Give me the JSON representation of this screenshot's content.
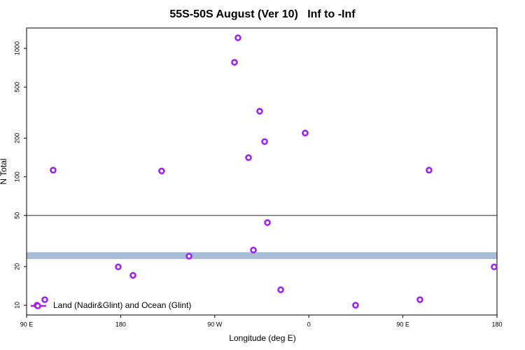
{
  "chart_data": {
    "type": "scatter",
    "title": "55S-50S August (Ver 10)   Inf to -Inf",
    "xlabel": "Longitude (deg E)",
    "ylabel": "N Total",
    "xlim": [
      90,
      540
    ],
    "xticks": [
      {
        "value": 90,
        "label": "90 E"
      },
      {
        "value": 180,
        "label": "180"
      },
      {
        "value": 270,
        "label": "90 W"
      },
      {
        "value": 360,
        "label": "0"
      },
      {
        "value": 450,
        "label": "90 E"
      },
      {
        "value": 540,
        "label": "180"
      }
    ],
    "ylim": [
      8.4,
      1440
    ],
    "ylog": true,
    "yticks": [
      10,
      20,
      50,
      100,
      200,
      500,
      1000
    ],
    "hline": 50,
    "band": [
      22.9,
      25.9
    ],
    "band_color": "#a8bcd8",
    "legend": "bottom-left",
    "series": [
      {
        "name": "Land (Nadir&Glint) and Ocean (Glint)",
        "color": "#a020f0",
        "x": [
          100,
          107.4,
          115.4,
          177.7,
          191.8,
          219.2,
          245.4,
          288.9,
          292.2,
          302.3,
          307,
          313,
          317.7,
          320.4,
          333.1,
          356.5,
          404.7,
          466.3,
          475,
          537.3
        ],
        "values": [
          10,
          11.05,
          112.7,
          19.9,
          17.1,
          111,
          24.1,
          778,
          1208,
          141,
          26.9,
          324,
          188,
          44,
          13.2,
          219,
          10,
          11.05,
          112.7,
          19.9
        ]
      }
    ]
  }
}
